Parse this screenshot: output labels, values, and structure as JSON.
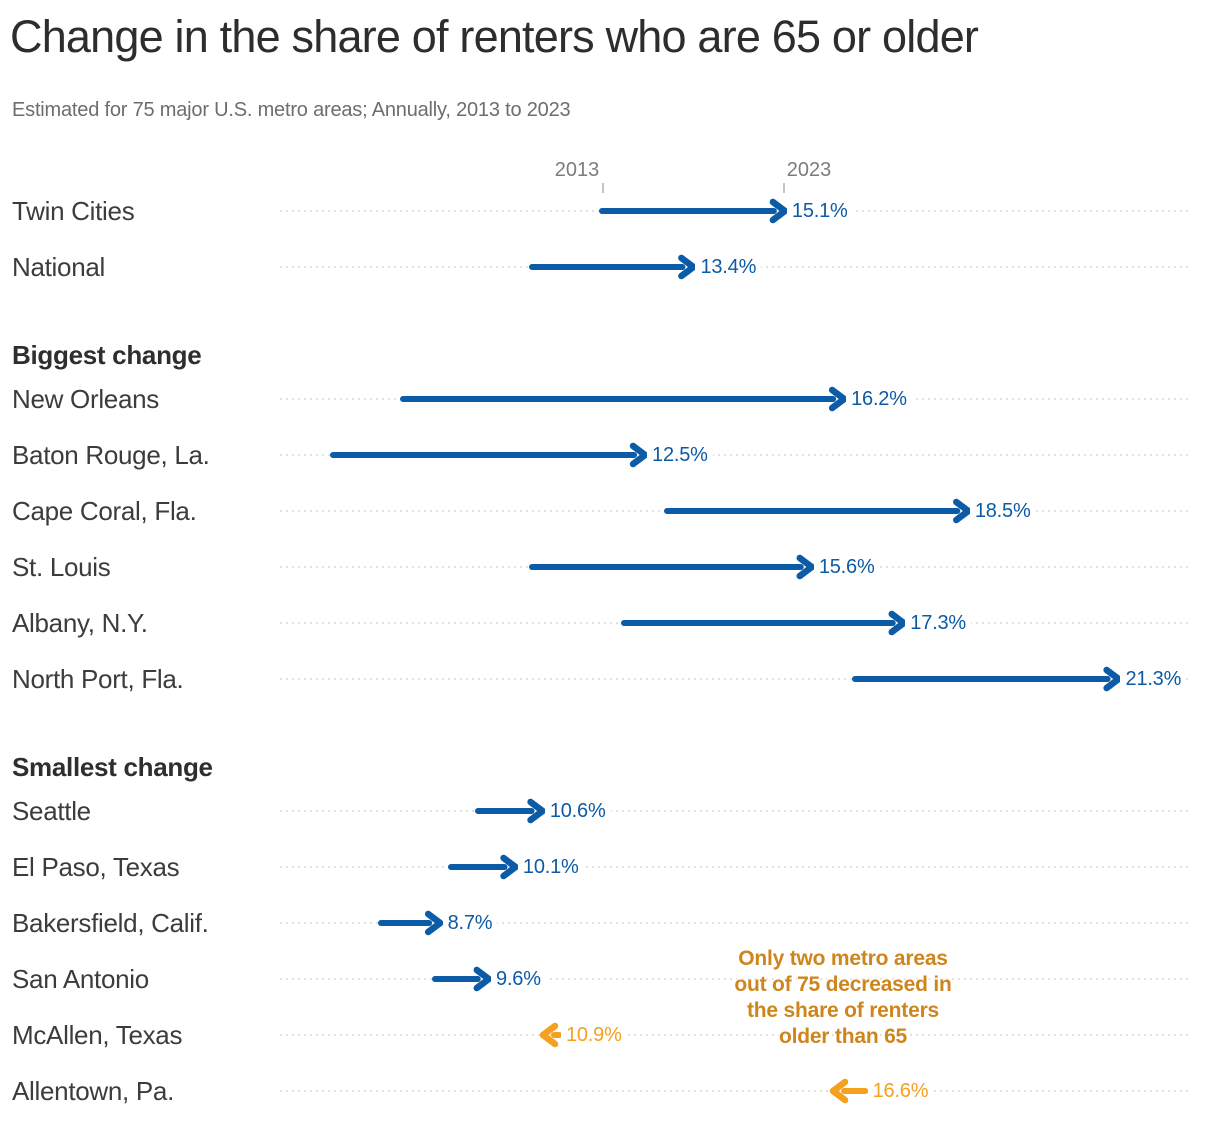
{
  "title": "Change in the share of renters who are 65 or older",
  "subtitle": "Estimated for 75 major U.S. metro areas; Annually, 2013 to 2023",
  "colors": {
    "increase": "#0b5ba6",
    "decrease": "#f5a01f",
    "annotation": "#ce861c",
    "row_label": "#3c3c3c",
    "dotted_line": "#e1e1e1",
    "axis_text": "#7c7c7c"
  },
  "annotation": {
    "text": "Only two metro areas\nout of 75 decreased in\nthe share of renters\nolder than 65"
  },
  "chart_data": {
    "type": "arrow",
    "unit": "%",
    "x_start_label": "2013",
    "x_end_label": "2023",
    "xlim": [
      6.0,
      22.5
    ],
    "grid": "dotted-row-leaders",
    "rows": [
      {
        "type": "row",
        "label": "Twin Cities",
        "start": 11.7,
        "end": 15.1,
        "start_text": "11.7%",
        "end_text": "15.1%",
        "trend": "up"
      },
      {
        "type": "row",
        "label": "National",
        "start": 10.4,
        "end": 13.4,
        "start_text": "10.4%",
        "end_text": "13.4%",
        "trend": "up"
      },
      {
        "type": "section",
        "label": "Biggest change"
      },
      {
        "type": "row",
        "label": "New Orleans",
        "start": 8.0,
        "end": 16.2,
        "start_text": "8.0%",
        "end_text": "16.2%",
        "trend": "up"
      },
      {
        "type": "row",
        "label": "Baton Rouge, La.",
        "start": 6.7,
        "end": 12.5,
        "start_text": "6.7%",
        "end_text": "12.5%",
        "trend": "up"
      },
      {
        "type": "row",
        "label": "Cape Coral, Fla.",
        "start": 12.9,
        "end": 18.5,
        "start_text": "12.9%",
        "end_text": "18.5%",
        "trend": "up"
      },
      {
        "type": "row",
        "label": "St. Louis",
        "start": 10.4,
        "end": 15.6,
        "start_text": "10.4%",
        "end_text": "15.6%",
        "trend": "up"
      },
      {
        "type": "row",
        "label": "Albany, N.Y.",
        "start": 12.1,
        "end": 17.3,
        "start_text": "12.1%",
        "end_text": "17.3%",
        "trend": "up"
      },
      {
        "type": "row",
        "label": "North Port, Fla.",
        "start": 16.4,
        "end": 21.3,
        "start_text": "16.4%",
        "end_text": "21.3%",
        "trend": "up"
      },
      {
        "type": "section",
        "label": "Smallest change"
      },
      {
        "type": "row",
        "label": "Seattle",
        "start": 9.4,
        "end": 10.6,
        "start_text": "9.4%",
        "end_text": "10.6%",
        "trend": "up"
      },
      {
        "type": "row",
        "label": "El Paso, Texas",
        "start": 8.9,
        "end": 10.1,
        "start_text": "8.9%",
        "end_text": "10.1%",
        "trend": "up"
      },
      {
        "type": "row",
        "label": "Bakersfield, Calif.",
        "start": 7.6,
        "end": 8.7,
        "start_text": "7.6%",
        "end_text": "8.7%",
        "trend": "up"
      },
      {
        "type": "row",
        "label": "San Antonio",
        "start": 8.6,
        "end": 9.6,
        "start_text": "8.6%",
        "end_text": "9.6%",
        "trend": "up"
      },
      {
        "type": "row",
        "label": "McAllen, Texas",
        "start": 10.9,
        "end": 10.6,
        "start_text": "10.9%",
        "end_text": "10.6%",
        "trend": "down"
      },
      {
        "type": "row",
        "label": "Allentown, Pa.",
        "start": 16.6,
        "end": 16.0,
        "start_text": "16.6%",
        "end_text": "16.0%",
        "trend": "down"
      }
    ]
  }
}
